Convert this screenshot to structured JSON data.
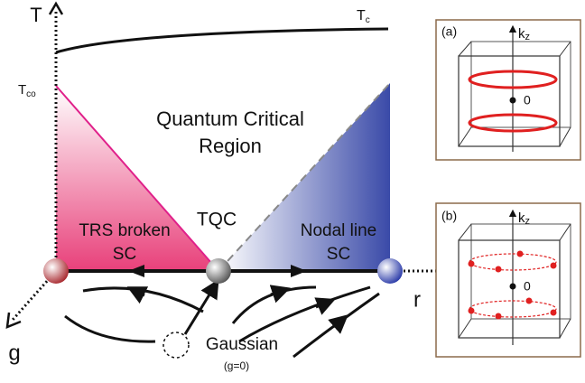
{
  "labels": {
    "t_axis": "T",
    "tc": {
      "base": "T",
      "sub": "c"
    },
    "tco": {
      "base": "T",
      "sub": "co"
    },
    "r_axis": "r",
    "g_axis": "g"
  },
  "regions": {
    "quantum_critical": [
      "Quantum Critical",
      "Region"
    ],
    "trs_broken": [
      "TRS broken",
      "SC"
    ],
    "tqc": "TQC",
    "nodal_line": [
      "Nodal line",
      "SC"
    ]
  },
  "gaussian": {
    "name": "Gaussian",
    "note": "(g=0)"
  },
  "insets": [
    {
      "label": "(a)",
      "axis": {
        "base": "k",
        "sub": "z"
      },
      "origin": "0"
    },
    {
      "label": "(b)",
      "axis": {
        "base": "k",
        "sub": "z"
      },
      "origin": "0"
    }
  ]
}
